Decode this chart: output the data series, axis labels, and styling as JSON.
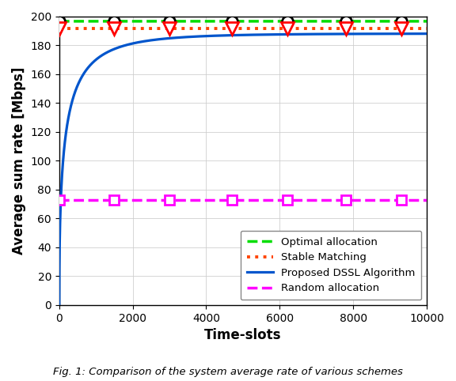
{
  "title": "",
  "xlabel": "Time-slots",
  "ylabel": "Average sum rate [Mbps]",
  "xlim": [
    0,
    10000
  ],
  "ylim": [
    0,
    200
  ],
  "xticks": [
    0,
    2000,
    4000,
    6000,
    8000,
    10000
  ],
  "yticks": [
    0,
    20,
    40,
    60,
    80,
    100,
    120,
    140,
    160,
    180,
    200
  ],
  "optimal_value": 196.5,
  "stable_matching_value": 191.5,
  "random_value": 72.5,
  "dssl_end": 188.0,
  "dssl_k": 0.006,
  "optimal_marker_positions": [
    0,
    1500,
    3000,
    4700,
    6200,
    7800,
    9300
  ],
  "stable_marker_positions": [
    0,
    1500,
    3000,
    4700,
    6200,
    7800,
    9300
  ],
  "random_marker_positions": [
    0,
    1500,
    3000,
    4700,
    6200,
    7800,
    9300
  ],
  "optimal_color": "#00dd00",
  "stable_color": "#ff4400",
  "dssl_color": "#0055cc",
  "random_color": "#ff00ff",
  "background_color": "#ffffff",
  "grid_color": "#cccccc",
  "legend_labels": [
    "Optimal allocation",
    "Stable Matching",
    "Proposed DSSL Algorithm",
    "Random allocation"
  ],
  "caption": "Fig. 1: Comparison of the system average rate of various schemes",
  "figwidth": 5.76,
  "figheight": 4.82,
  "dpi": 100
}
